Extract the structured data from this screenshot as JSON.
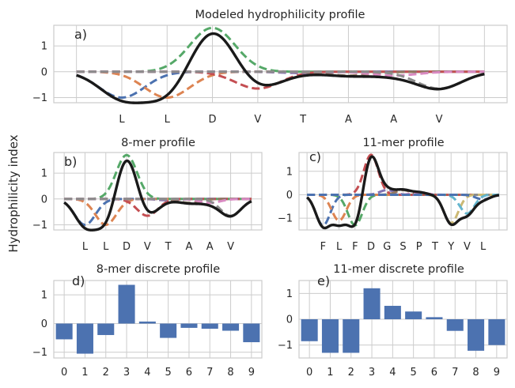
{
  "figure": {
    "ylabel": "Hydrophilicity index",
    "colors": {
      "main": "#1a1a1a",
      "bar": "#4c72b0",
      "grid": "#cccccc",
      "palette": [
        "#4c72b0",
        "#dd8452",
        "#55a868",
        "#c44e52",
        "#8172b3",
        "#937860",
        "#da8bc3",
        "#8c8c8c",
        "#ccb974",
        "#64b5cd",
        "#4c72b0"
      ]
    }
  },
  "chart_data": [
    {
      "id": "a",
      "type": "line",
      "panel_label": "a)",
      "title": "Modeled hydrophilicity profile",
      "xlim": [
        -0.5,
        9.5
      ],
      "ylim": [
        -1.2,
        1.8
      ],
      "yticks": [
        -1,
        0,
        1
      ],
      "residues": [
        "L",
        "L",
        "D",
        "V",
        "T",
        "A",
        "A",
        "V"
      ],
      "residue_positions": [
        1,
        2,
        3,
        4,
        5,
        6,
        7,
        8
      ],
      "values": [
        -1.0,
        -1.0,
        1.7,
        -0.65,
        -0.05,
        -0.15,
        -0.15,
        -0.65
      ],
      "sigma": 0.5
    },
    {
      "id": "b",
      "type": "line",
      "panel_label": "b)",
      "title": "8-mer profile",
      "xlim": [
        -0.5,
        9.5
      ],
      "ylim": [
        -1.2,
        1.8
      ],
      "yticks": [
        -1,
        0,
        1
      ],
      "residues": [
        "L",
        "L",
        "D",
        "V",
        "T",
        "A",
        "A",
        "V"
      ],
      "residue_positions": [
        1,
        2,
        3,
        4,
        5,
        6,
        7,
        8
      ],
      "values": [
        -1.0,
        -1.0,
        1.7,
        -0.65,
        -0.05,
        -0.15,
        -0.15,
        -0.65
      ],
      "sigma": 0.5
    },
    {
      "id": "c",
      "type": "line",
      "panel_label": "c)",
      "title": "11-mer profile",
      "xlim": [
        -0.5,
        12.5
      ],
      "ylim": [
        -1.5,
        1.8
      ],
      "yticks": [
        -1,
        0,
        1
      ],
      "residues": [
        "F",
        "L",
        "F",
        "D",
        "G",
        "S",
        "P",
        "T",
        "Y",
        "V",
        "L"
      ],
      "residue_positions": [
        1,
        2,
        3,
        4,
        5,
        6,
        7,
        8,
        9,
        10,
        11
      ],
      "values": [
        -1.3,
        -1.1,
        -1.3,
        1.7,
        0.2,
        0.2,
        0.1,
        0.0,
        -1.2,
        -0.8,
        -0.2
      ],
      "sigma": 0.45
    },
    {
      "id": "d",
      "type": "bar",
      "panel_label": "d)",
      "title": "8-mer discrete profile",
      "xlim": [
        -0.5,
        9.5
      ],
      "ylim": [
        -1.2,
        1.5
      ],
      "yticks": [
        -1,
        0,
        1
      ],
      "categories": [
        "0",
        "1",
        "2",
        "3",
        "4",
        "5",
        "6",
        "7",
        "8",
        "9"
      ],
      "values": [
        -0.55,
        -1.05,
        -0.4,
        1.35,
        0.07,
        -0.5,
        -0.15,
        -0.18,
        -0.25,
        -0.65
      ]
    },
    {
      "id": "e",
      "type": "bar",
      "panel_label": "e)",
      "title": "11-mer discrete profile",
      "xlim": [
        -0.5,
        9.5
      ],
      "ylim": [
        -1.5,
        1.5
      ],
      "yticks": [
        -1,
        0,
        1
      ],
      "categories": [
        "0",
        "1",
        "2",
        "3",
        "4",
        "5",
        "6",
        "7",
        "8",
        "9"
      ],
      "values": [
        -0.85,
        -1.3,
        -1.3,
        1.2,
        0.52,
        0.3,
        0.08,
        -0.45,
        -1.22,
        -1.0
      ]
    }
  ]
}
